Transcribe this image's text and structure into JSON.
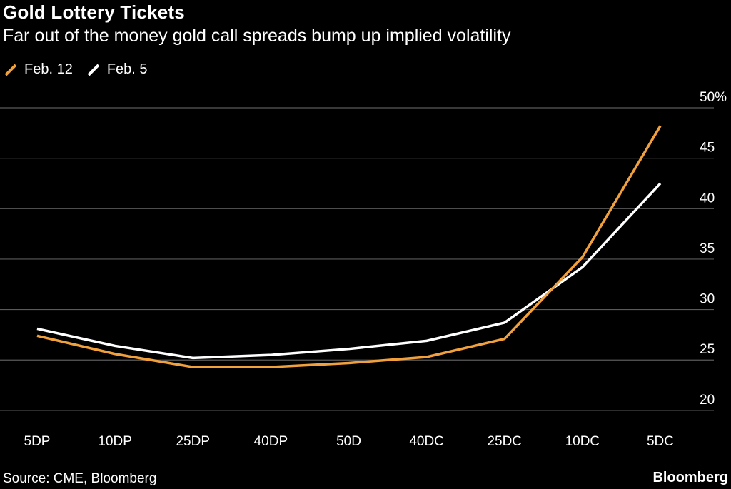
{
  "header": {
    "title": "Gold Lottery Tickets",
    "subtitle": "Far out of the money gold call spreads bump up implied volatility"
  },
  "legend": [
    {
      "label": "Feb. 12",
      "color": "#f2a03c"
    },
    {
      "label": "Feb. 5",
      "color": "#ffffff"
    }
  ],
  "footer": {
    "source": "Source: CME, Bloomberg",
    "brand": "Bloomberg"
  },
  "chart_data": {
    "type": "line",
    "title": "Gold Lottery Tickets",
    "subtitle": "Far out of the money gold call spreads bump up implied volatility",
    "categories": [
      "5DP",
      "10DP",
      "25DP",
      "40DP",
      "50D",
      "40DC",
      "25DC",
      "10DC",
      "5DC"
    ],
    "series": [
      {
        "name": "Feb. 12",
        "color": "#f2a03c",
        "values": [
          27.4,
          25.6,
          24.3,
          24.3,
          24.7,
          25.3,
          27.1,
          35.2,
          48.2
        ]
      },
      {
        "name": "Feb. 5",
        "color": "#ffffff",
        "values": [
          28.1,
          26.4,
          25.2,
          25.5,
          26.1,
          26.9,
          28.7,
          34.2,
          42.5
        ]
      }
    ],
    "ylim": [
      19,
      50
    ],
    "yticks": [
      20,
      25,
      30,
      35,
      40,
      45,
      50
    ],
    "ytick_labels": [
      "20",
      "25",
      "30",
      "35",
      "40",
      "45",
      "50%"
    ],
    "xlabel": "",
    "ylabel": "",
    "grid": true,
    "legend_position": "top-left",
    "axis_position": "right"
  }
}
